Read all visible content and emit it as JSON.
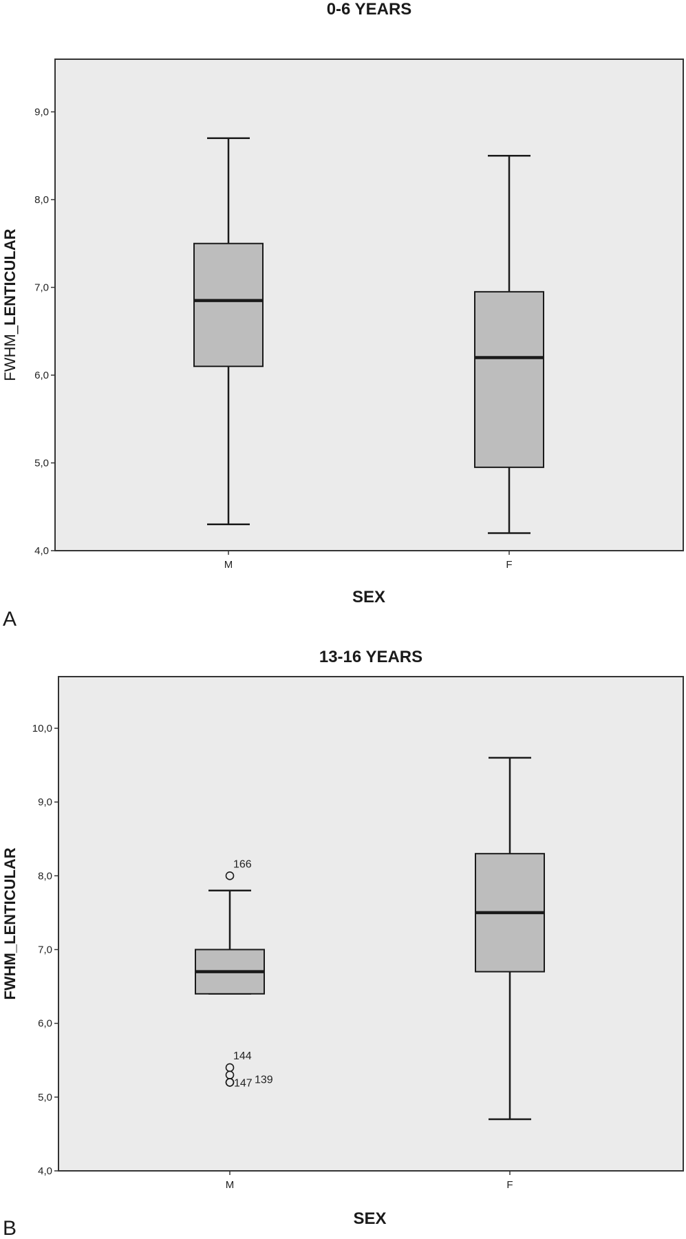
{
  "chart_data": [
    {
      "type": "boxplot",
      "panel_label": "A",
      "title": "0-6 YEARS",
      "xlabel": "SEX",
      "ylabel_prefix": "FWHM_",
      "ylabel_main": "LENTICULAR",
      "ylabel_style": "mixed",
      "ylim": [
        4.0,
        9.6
      ],
      "yticks": [
        4.0,
        5.0,
        6.0,
        7.0,
        8.0,
        9.0
      ],
      "ytick_labels": [
        "4,0",
        "5,0",
        "6,0",
        "7,0",
        "8,0",
        "9,0"
      ],
      "grid": false,
      "categories": [
        "M",
        "F"
      ],
      "boxes": [
        {
          "min": 4.3,
          "q1": 6.1,
          "median": 6.85,
          "q3": 7.5,
          "max": 8.7,
          "outliers": []
        },
        {
          "min": 4.2,
          "q1": 4.95,
          "median": 6.2,
          "q3": 6.95,
          "max": 8.5,
          "outliers": []
        }
      ]
    },
    {
      "type": "boxplot",
      "panel_label": "B",
      "title": "13-16 YEARS",
      "xlabel": "SEX",
      "ylabel_prefix": "FWHM_",
      "ylabel_main": "LENTICULAR",
      "ylabel_style": "bold",
      "ylim": [
        4.0,
        10.7
      ],
      "yticks": [
        4.0,
        5.0,
        6.0,
        7.0,
        8.0,
        9.0,
        10.0
      ],
      "ytick_labels": [
        "4,0",
        "5,0",
        "6,0",
        "7,0",
        "8,0",
        "9,0",
        "10,0"
      ],
      "grid": false,
      "categories": [
        "M",
        "F"
      ],
      "boxes": [
        {
          "min": 6.4,
          "q1": 6.4,
          "median": 6.7,
          "q3": 7.0,
          "max": 7.8,
          "outliers": [
            {
              "value": 8.0,
              "label": "166",
              "label_pos": "above"
            },
            {
              "value": 5.4,
              "label": "144",
              "label_pos": "above"
            },
            {
              "value": 5.3,
              "label": "",
              "label_pos": "none"
            },
            {
              "value": 5.2,
              "label": "147",
              "label_pos": "right"
            },
            {
              "value": 5.2,
              "label": "139",
              "label_pos": "right2"
            }
          ]
        },
        {
          "min": 4.7,
          "q1": 6.7,
          "median": 7.5,
          "q3": 8.3,
          "max": 9.6,
          "outliers": []
        }
      ]
    }
  ],
  "colors": {
    "plot_bg": "#ebebeb",
    "box_fill": "#bdbdbd",
    "line": "#1a1a1a",
    "frame": "#333333"
  }
}
